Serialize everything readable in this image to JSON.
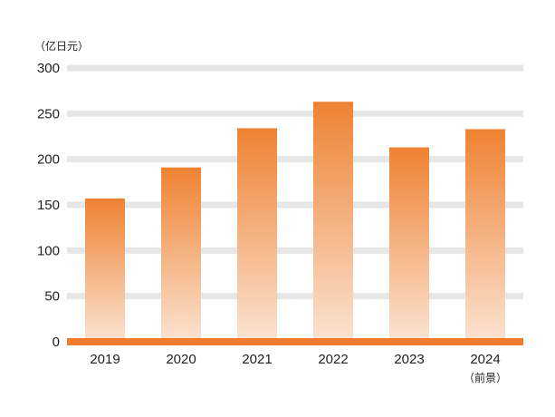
{
  "chart_data": {
    "type": "bar",
    "unit_label": "（亿日元）",
    "categories": [
      "2019",
      "2020",
      "2021",
      "2022",
      "2023",
      "2024"
    ],
    "category_notes": [
      "",
      "",
      "",
      "",
      "",
      "（前景）"
    ],
    "values": [
      157,
      191,
      234,
      263,
      213,
      233
    ],
    "yticks": [
      "0",
      "50",
      "100",
      "150",
      "200",
      "250",
      "300"
    ],
    "ylim": [
      0,
      300
    ],
    "grid": true,
    "colors": {
      "bar_top": "#ee8232",
      "bar_bottom": "#fbe3d2",
      "grid": "#e6e6e6",
      "baseline": "#ee7b30"
    }
  }
}
